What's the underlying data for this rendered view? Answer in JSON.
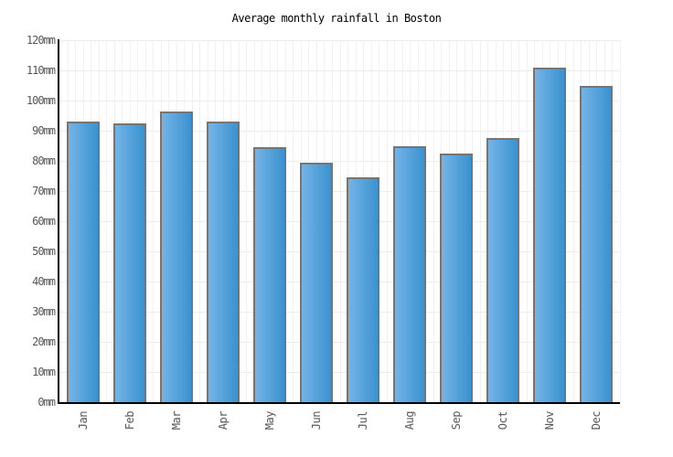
{
  "chart_data": {
    "type": "bar",
    "title": "Average monthly rainfall in Boston",
    "categories": [
      "Jan",
      "Feb",
      "Mar",
      "Apr",
      "May",
      "Jun",
      "Jul",
      "Aug",
      "Sep",
      "Oct",
      "Nov",
      "Dec"
    ],
    "values": [
      93,
      92.5,
      96.5,
      93,
      84.5,
      79.5,
      74.5,
      85,
      82.5,
      87.5,
      111,
      105
    ],
    "xlabel": "",
    "ylabel": "",
    "ylim": [
      0,
      120
    ],
    "ytick_step": 10,
    "ytick_suffix": "mm",
    "grid": true,
    "legend": false
  },
  "colors": {
    "background": "#ffffff",
    "title_text": "#000000",
    "tick_label_text": "#565656",
    "axis_line": "#000000",
    "h_gridline": "#ececec",
    "v_gridline": "#f1f1f1",
    "bar_border": "#757575",
    "bar_gradient_left": "#74b4e8",
    "bar_gradient_right": "#3a92cf"
  }
}
